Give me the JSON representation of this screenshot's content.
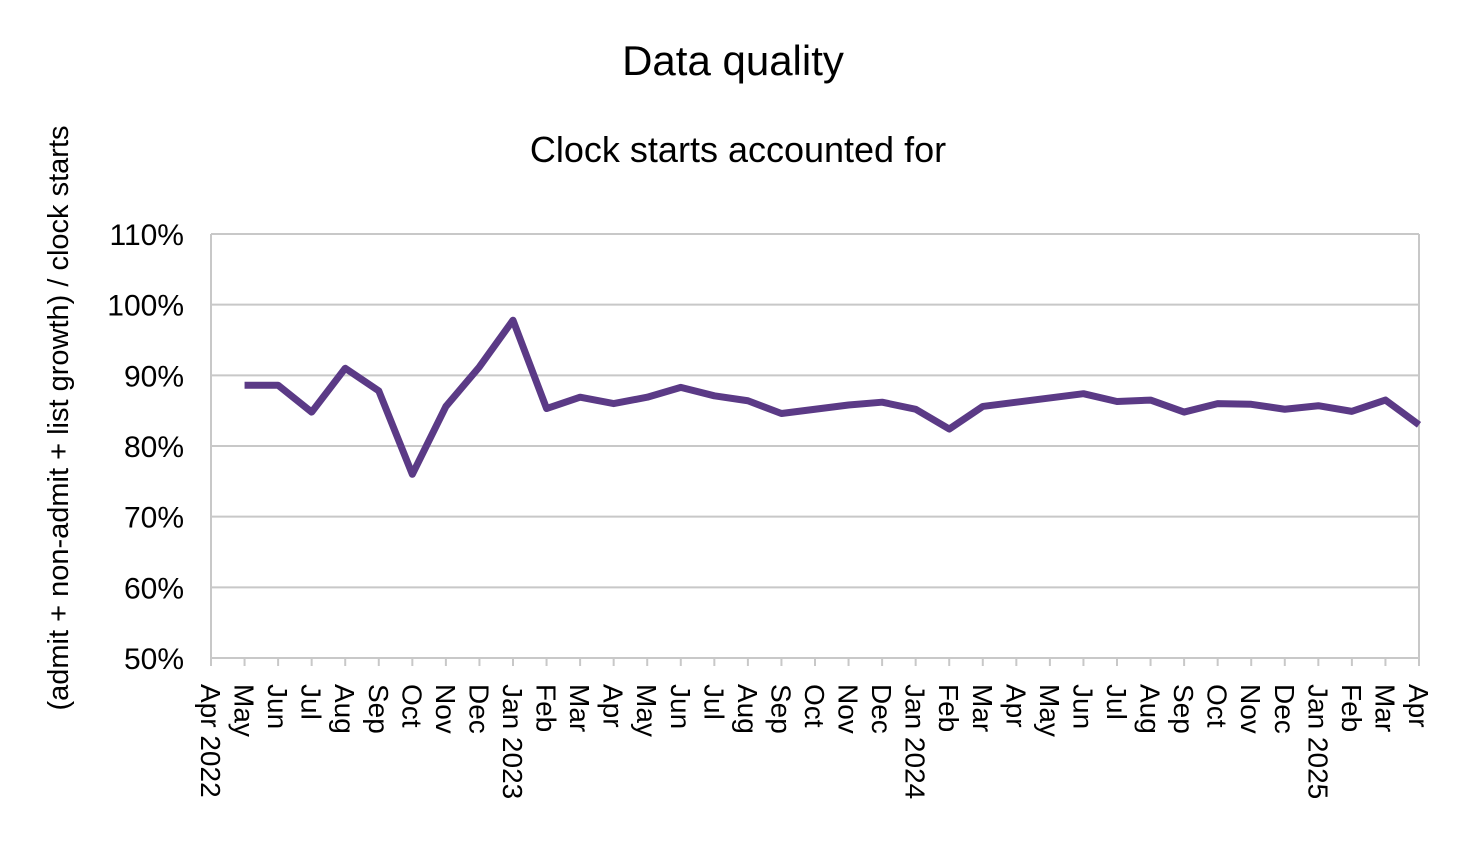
{
  "chart_data": {
    "type": "line",
    "title": "Data quality",
    "subtitle": "Clock starts accounted for",
    "xlabel": "",
    "ylabel": "(admit + non-admit + list growth) / clock starts",
    "ylim": [
      0.5,
      1.1
    ],
    "yticks": [
      0.5,
      0.6,
      0.7,
      0.8,
      0.9,
      1.0,
      1.1
    ],
    "ytick_labels": [
      "50%",
      "60%",
      "70%",
      "80%",
      "90%",
      "100%",
      "110%"
    ],
    "grid": true,
    "legend": "none",
    "series_color": "#5b3a86",
    "categories": [
      "Apr 2022",
      "May",
      "Jun",
      "Jul",
      "Aug",
      "Sep",
      "Oct",
      "Nov",
      "Dec",
      "Jan 2023",
      "Feb",
      "Mar",
      "Apr",
      "May",
      "Jun",
      "Jul",
      "Aug",
      "Sep",
      "Oct",
      "Nov",
      "Dec",
      "Jan 2024",
      "Feb",
      "Mar",
      "Apr",
      "May",
      "Jun",
      "Jul",
      "Aug",
      "Sep",
      "Oct",
      "Nov",
      "Dec",
      "Jan 2025",
      "Feb",
      "Mar",
      "Apr"
    ],
    "series": [
      {
        "values": [
          null,
          0.886,
          0.886,
          0.848,
          0.91,
          0.878,
          0.76,
          0.856,
          0.912,
          0.978,
          0.853,
          0.869,
          0.86,
          0.869,
          0.883,
          0.871,
          0.864,
          0.846,
          0.852,
          0.858,
          0.862,
          0.852,
          0.824,
          0.856,
          0.862,
          0.868,
          0.874,
          0.863,
          0.865,
          0.848,
          0.86,
          0.859,
          0.852,
          0.857,
          0.849,
          0.865,
          0.83
        ]
      }
    ]
  }
}
